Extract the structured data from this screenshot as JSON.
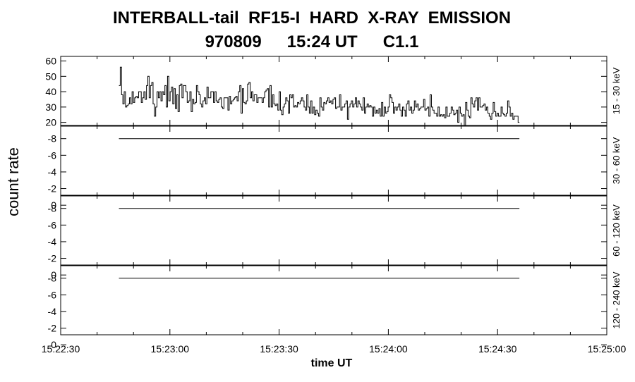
{
  "title_line1": "INTERBALL-tail  RF15-I  HARD  X-RAY  EMISSION",
  "title_date": "970809",
  "title_time": "15:24 UT",
  "title_class": "C1.1",
  "ylabel": "count rate",
  "xlabel": "time UT",
  "colors": {
    "axis": "#000000",
    "data": "#000000",
    "background": "#ffffff"
  },
  "chart_data": {
    "type": "line",
    "x_axis": {
      "min": "15:22:30",
      "max": "15:25:00",
      "ticks": [
        "15:22:30",
        "15:23:00",
        "15:23:30",
        "15:24:00",
        "15:24:30",
        "15:25:00"
      ]
    },
    "panels": [
      {
        "channel_label": "15 - 30 keV",
        "ylim": [
          18,
          63
        ],
        "yticks": [
          20,
          30,
          40,
          50,
          60
        ],
        "ytick_labels": [
          "20",
          "30",
          "40",
          "50",
          "60"
        ],
        "x_start": "15:22:46",
        "x_end": "15:24:36",
        "values": [
          44,
          56,
          38,
          32,
          40,
          30,
          31,
          32,
          36,
          32,
          40,
          33,
          36,
          37,
          36,
          40,
          40,
          33,
          36,
          40,
          35,
          44,
          50,
          36,
          44,
          46,
          32,
          24,
          30,
          40,
          36,
          40,
          34,
          40,
          38,
          44,
          30,
          50,
          34,
          40,
          43,
          32,
          42,
          29,
          38,
          27,
          44,
          45,
          36,
          44,
          44,
          40,
          33,
          34,
          40,
          27,
          35,
          32,
          33,
          44,
          40,
          38,
          32,
          30,
          34,
          36,
          32,
          43,
          36,
          36,
          40,
          40,
          33,
          40,
          34,
          33,
          35,
          36,
          30,
          29,
          36,
          36,
          36,
          28,
          37,
          32,
          34,
          35,
          36,
          37,
          34,
          40,
          44,
          26,
          42,
          33,
          32,
          34,
          45,
          46,
          36,
          40,
          34,
          38,
          38,
          33,
          36,
          36,
          36,
          33,
          36,
          40,
          41,
          42,
          30,
          44,
          30,
          38,
          32,
          31,
          32,
          28,
          40,
          28,
          25,
          30,
          32,
          36,
          34,
          26,
          38,
          36,
          38,
          30,
          31,
          30,
          33,
          32,
          34,
          36,
          34,
          30,
          28,
          38,
          30,
          26,
          34,
          26,
          30,
          25,
          28,
          26,
          24,
          36,
          30,
          28,
          33,
          32,
          34,
          36,
          33,
          34,
          32,
          35,
          36,
          29,
          30,
          30,
          38,
          28,
          30,
          30,
          32,
          34,
          22,
          30,
          32,
          34,
          30,
          32,
          36,
          30,
          34,
          32,
          30,
          28,
          36,
          26,
          30,
          32,
          30,
          31,
          30,
          24,
          30,
          26,
          28,
          26,
          29,
          24,
          33,
          24,
          30,
          26,
          27,
          30,
          38,
          36,
          33,
          26,
          30,
          28,
          30,
          32,
          28,
          24,
          30,
          28,
          24,
          32,
          34,
          28,
          30,
          26,
          28,
          34,
          30,
          32,
          28,
          29,
          30,
          30,
          35,
          28,
          29,
          30,
          24,
          38,
          30,
          28,
          26,
          26,
          24,
          30,
          24,
          25,
          24,
          25,
          23,
          30,
          24,
          24,
          26,
          30,
          28,
          25,
          26,
          28,
          20,
          30,
          26,
          24,
          25,
          18,
          33,
          28,
          24,
          23,
          36,
          32,
          30,
          34,
          36,
          28,
          36,
          30,
          30,
          31,
          32,
          28,
          30,
          26,
          24,
          22,
          26,
          33,
          27,
          24,
          26,
          24,
          24,
          30,
          26,
          25,
          24,
          26,
          34,
          30,
          24,
          26,
          22,
          24,
          24,
          24,
          20
        ]
      },
      {
        "channel_label": "30 - 60 keV",
        "ylim": [
          -1.2,
          -9.5
        ],
        "yticks": [
          0,
          -2,
          -4,
          -6,
          -8
        ],
        "ytick_labels": [
          "0",
          "-2",
          "-4",
          "-6",
          "-8"
        ],
        "x_start": "15:22:46",
        "x_end": "15:24:36",
        "constant_value": -8
      },
      {
        "channel_label": "60 - 120 keV",
        "ylim": [
          -1.2,
          -9.5
        ],
        "yticks": [
          0,
          -2,
          -4,
          -6,
          -8
        ],
        "ytick_labels": [
          "0",
          "-2",
          "-4",
          "-6",
          "-8"
        ],
        "x_start": "15:22:46",
        "x_end": "15:24:36",
        "constant_value": -8
      },
      {
        "channel_label": "120 - 240 keV",
        "ylim": [
          -1.2,
          -9.5
        ],
        "yticks": [
          0,
          -2,
          -4,
          -6,
          -8
        ],
        "ytick_labels": [
          "0",
          "-2",
          "-4",
          "-6",
          "-8"
        ],
        "x_start": "15:22:46",
        "x_end": "15:24:36",
        "constant_value": -8
      }
    ],
    "grid": false,
    "legend": "none"
  }
}
